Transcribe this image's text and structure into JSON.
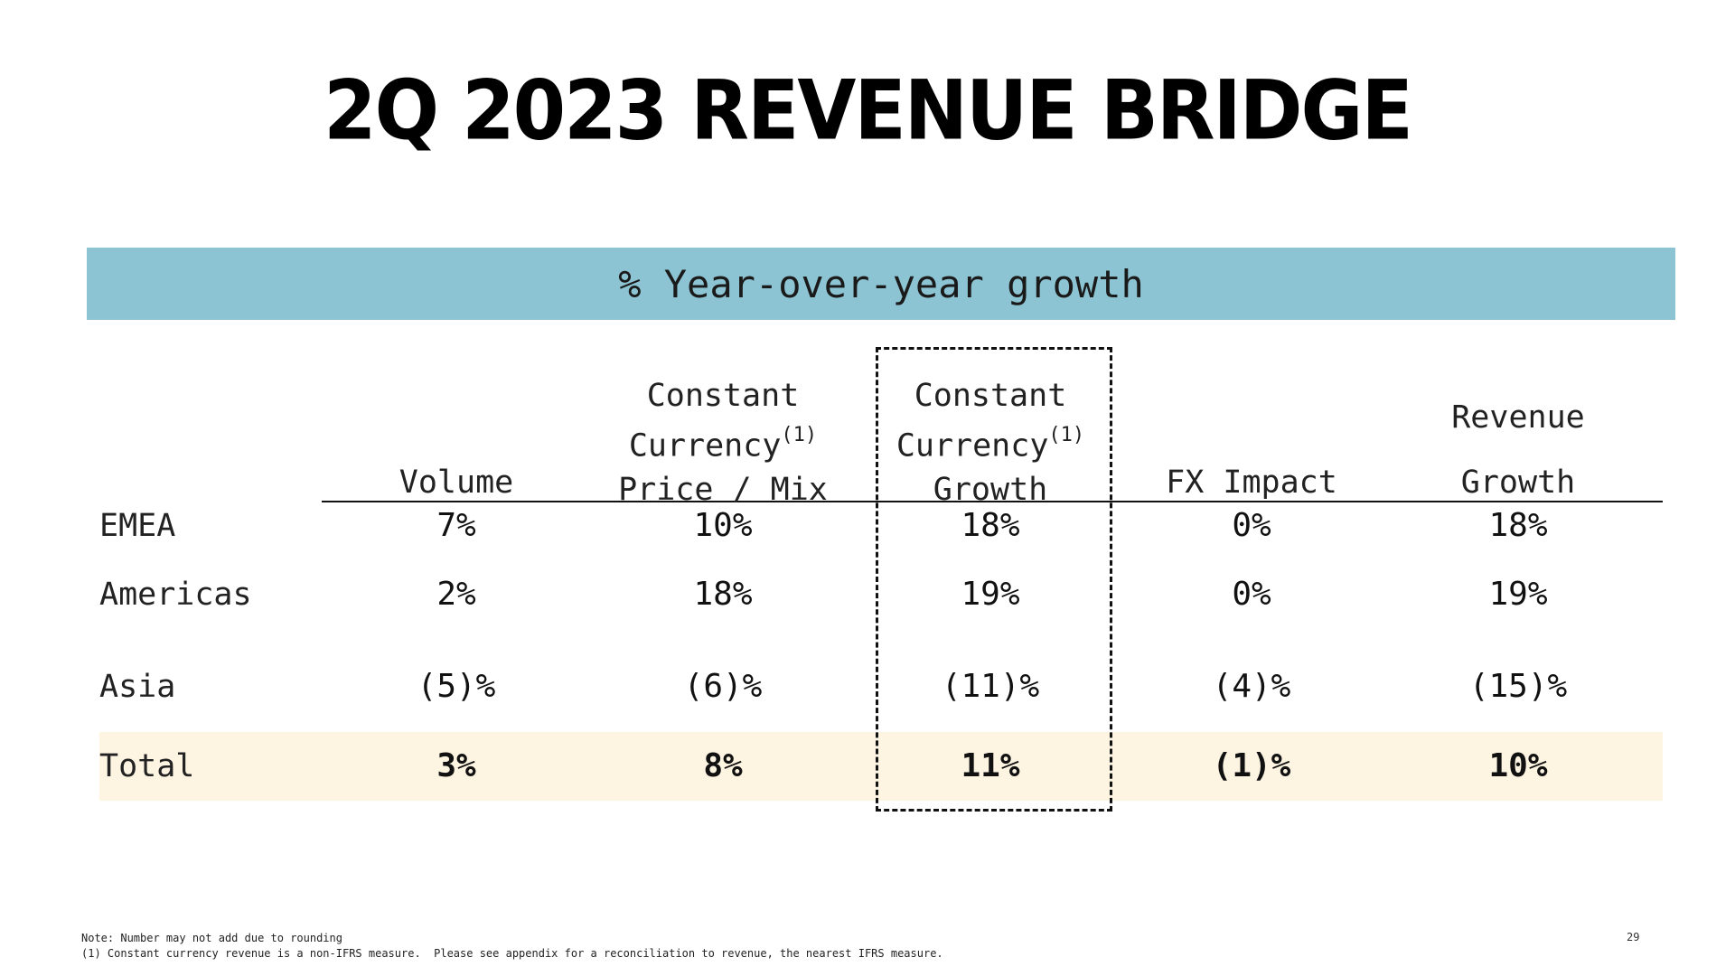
{
  "title": "2Q 2023 REVENUE BRIDGE",
  "band_label": "% Year-over-year growth",
  "columns": [
    {
      "line1": "",
      "line2": "",
      "line3": "Volume",
      "sup": ""
    },
    {
      "line1": "Constant",
      "line2": "Currency",
      "line3": "Price / Mix",
      "sup": "(1)"
    },
    {
      "line1": "Constant",
      "line2": "Currency",
      "line3": "Growth",
      "sup": "(1)"
    },
    {
      "line1": "",
      "line2": "",
      "line3": "FX Impact",
      "sup": ""
    },
    {
      "line1": "",
      "line2": "Revenue",
      "line3": "Growth",
      "sup": ""
    }
  ],
  "rows": [
    {
      "label": "EMEA",
      "values": [
        "7%",
        "10%",
        "18%",
        "0%",
        "18%"
      ]
    },
    {
      "label": "Americas",
      "values": [
        "2%",
        "18%",
        "19%",
        "0%",
        "19%"
      ]
    },
    {
      "label": "Asia",
      "values": [
        "(5)%",
        "(6)%",
        "(11)%",
        "(4)%",
        "(15)%"
      ]
    },
    {
      "label": "Total",
      "values": [
        "3%",
        "8%",
        "11%",
        "(1)%",
        "10%"
      ]
    }
  ],
  "footnotes": {
    "note": "Note: Number may not add due to rounding",
    "one": "(1) Constant currency revenue is a non-IFRS measure.  Please see appendix for a reconciliation to revenue, the nearest IFRS measure."
  },
  "page_number": "29",
  "colors": {
    "band": "#8cc4d3",
    "total_highlight": "#fef4e2"
  }
}
